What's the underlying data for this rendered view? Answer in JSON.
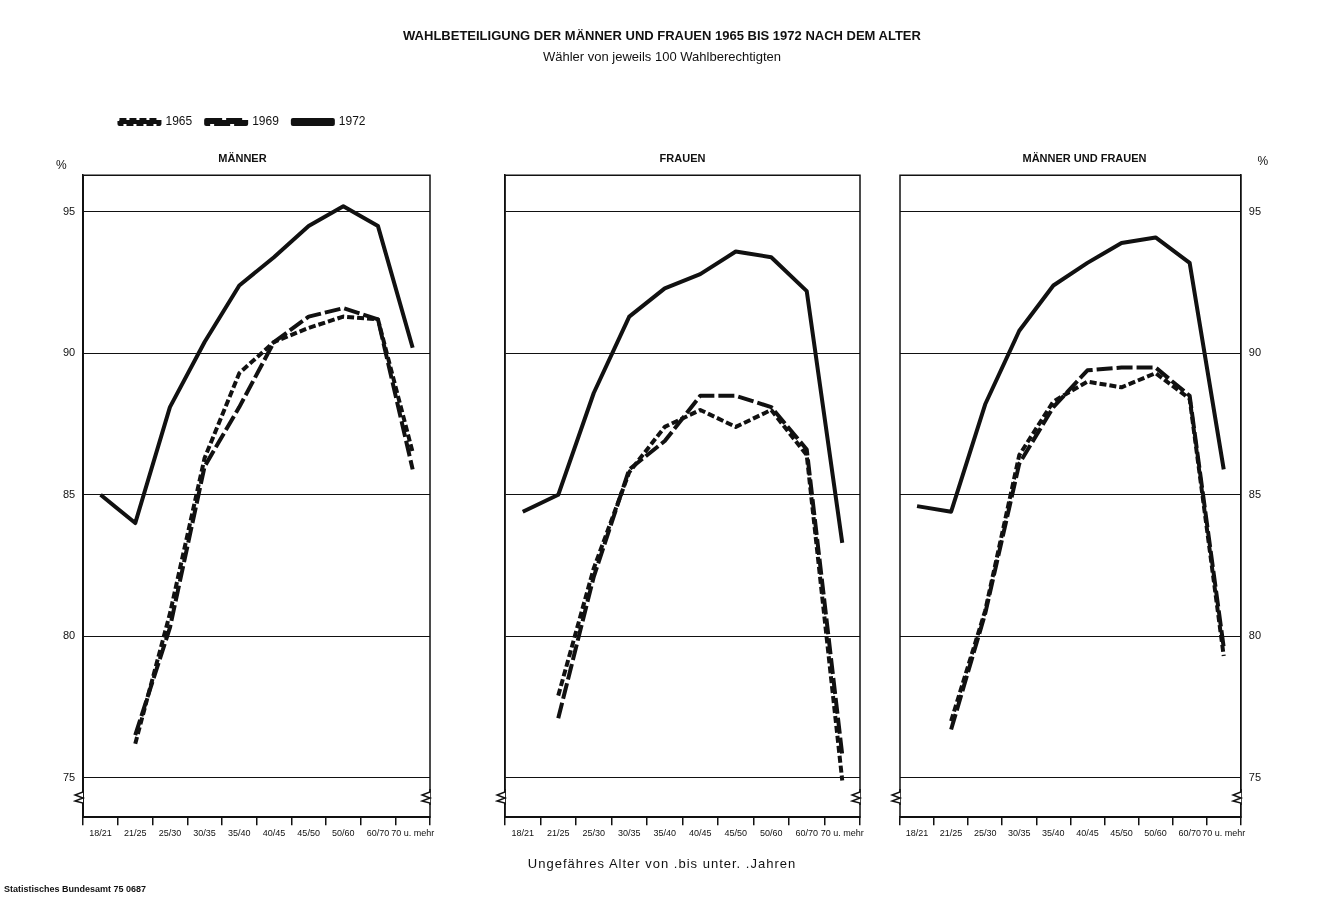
{
  "chart_data": [
    {
      "type": "other",
      "title": "WAHLBETEILIGUNG DER MÄNNER UND FRAUEN 1965 BIS 1972 NACH DEM ALTER",
      "subtitle": "Wähler von jeweils 100 Wahlberechtigten",
      "annotations": [
        "Statistisches Bundesamt 75 0687"
      ]
    },
    {
      "type": "line",
      "title": "MÄNNER",
      "ylabel": "%",
      "categories": [
        "18/21",
        "21/25",
        "25/30",
        "30/35",
        "35/40",
        "40/45",
        "45/50",
        "50/60",
        "60/70",
        "70 u. mehr"
      ],
      "series": [
        {
          "name": "1965",
          "color": "#111111",
          "line_style": "dotted",
          "values": [
            null,
            76.2,
            80.8,
            86.3,
            89.3,
            90.4,
            90.9,
            91.3,
            91.2,
            86.5
          ]
        },
        {
          "name": "1969",
          "color": "#111111",
          "line_style": "dashed",
          "values": [
            null,
            76.5,
            80.3,
            86.0,
            88.1,
            90.4,
            91.3,
            91.6,
            91.2,
            85.9
          ]
        },
        {
          "name": "1972",
          "color": "#111111",
          "line_style": "solid",
          "values": [
            85.0,
            84.0,
            88.1,
            90.4,
            92.4,
            93.4,
            94.5,
            95.2,
            94.5,
            90.2
          ]
        }
      ],
      "ylim": [
        73.6,
        96.3
      ],
      "yticks": [
        75,
        80,
        85,
        90,
        95
      ],
      "grid": "y",
      "legend": "top",
      "marker": "none"
    },
    {
      "type": "line",
      "title": "FRAUEN",
      "xlabel": "Ungefähres Alter von  .bis unter. .Jahren",
      "categories": [
        "18/21",
        "21/25",
        "25/30",
        "30/35",
        "35/40",
        "40/45",
        "45/50",
        "50/60",
        "60/70",
        "70 u. mehr"
      ],
      "series": [
        {
          "color": "#111111",
          "line_style": "dotted",
          "values": [
            null,
            77.9,
            82.4,
            85.8,
            87.4,
            88.0,
            87.4,
            88.0,
            86.4,
            74.9
          ]
        },
        {
          "color": "#111111",
          "line_style": "dashed",
          "values": [
            null,
            77.1,
            82.1,
            85.9,
            86.9,
            88.5,
            88.5,
            88.1,
            86.6,
            75.8
          ]
        },
        {
          "color": "#111111",
          "line_style": "solid",
          "values": [
            84.4,
            85.0,
            88.6,
            91.3,
            92.3,
            92.8,
            93.6,
            93.4,
            92.2,
            83.3
          ]
        }
      ],
      "ylim": [
        73.6,
        96.3
      ],
      "yticks": [
        75,
        80,
        85,
        90,
        95
      ],
      "grid": "y",
      "tick_labels": "x",
      "marker": "none"
    },
    {
      "type": "line",
      "title": "MÄNNER UND FRAUEN",
      "ylabel": "%",
      "categories": [
        "18/21",
        "21/25",
        "25/30",
        "30/35",
        "35/40",
        "40/45",
        "45/50",
        "50/60",
        "60/70",
        "70 u. mehr"
      ],
      "series": [
        {
          "color": "#111111",
          "line_style": "dotted",
          "values": [
            null,
            77.0,
            80.9,
            86.4,
            88.3,
            89.0,
            88.8,
            89.3,
            88.4,
            79.3
          ]
        },
        {
          "color": "#111111",
          "line_style": "dashed",
          "values": [
            null,
            76.7,
            80.8,
            86.1,
            88.1,
            89.4,
            89.5,
            89.5,
            88.5,
            79.6
          ]
        },
        {
          "color": "#111111",
          "line_style": "solid",
          "values": [
            84.6,
            84.4,
            88.2,
            90.8,
            92.4,
            93.2,
            93.9,
            94.1,
            93.2,
            85.9
          ]
        }
      ],
      "ylim": [
        73.6,
        96.3
      ],
      "yticks": [
        75,
        80,
        85,
        90,
        95
      ],
      "grid": "y",
      "marker": "none"
    }
  ]
}
